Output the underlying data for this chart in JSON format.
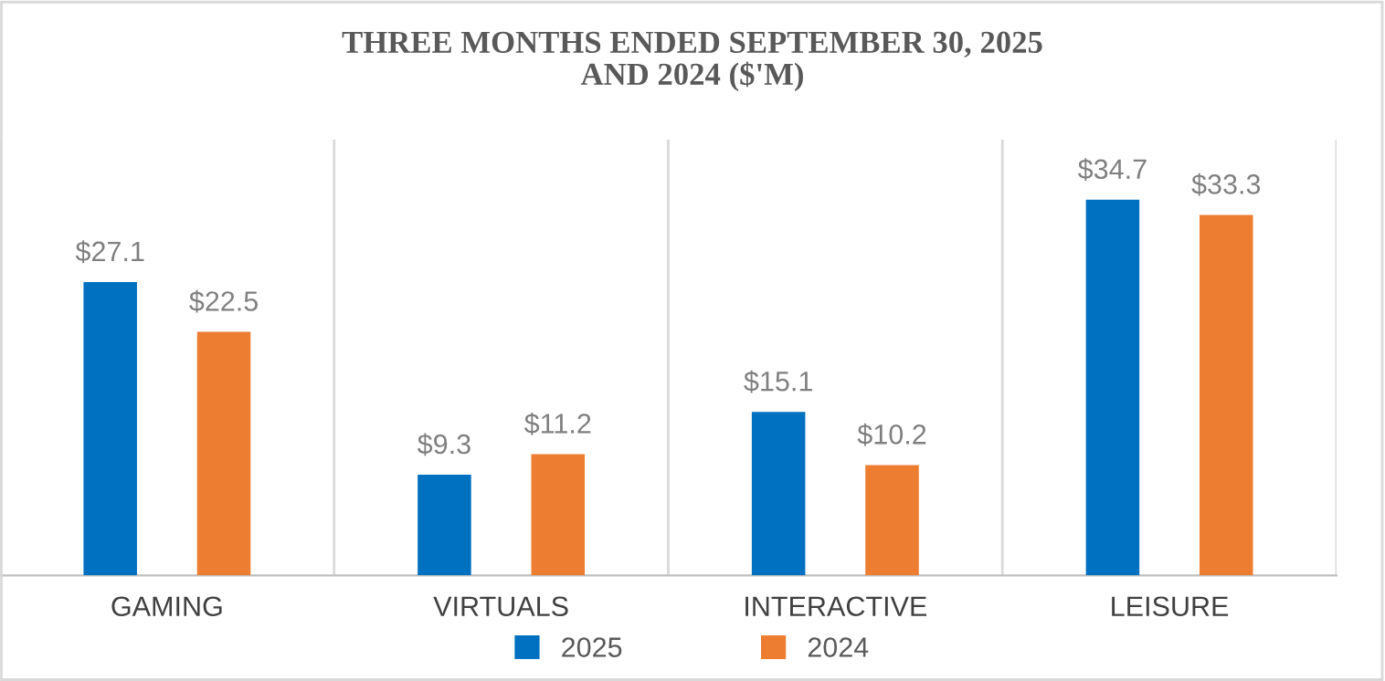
{
  "chart_data": {
    "type": "bar",
    "title": "THREE MONTHS ENDED SEPTEMBER 30, 2025\nAND 2024 ($'M)",
    "categories": [
      "GAMING",
      "VIRTUALS",
      "INTERACTIVE",
      "LEISURE"
    ],
    "series": [
      {
        "name": "2025",
        "color": "#0070c0",
        "values": [
          27.1,
          9.3,
          15.1,
          34.7
        ],
        "value_labels": [
          "$27.1",
          "$9.3",
          "$15.1",
          "$34.7"
        ]
      },
      {
        "name": "2024",
        "color": "#ed7d31",
        "values": [
          22.5,
          11.2,
          10.2,
          33.3
        ],
        "value_labels": [
          "$22.5",
          "$11.2",
          "$10.2",
          "$33.3"
        ]
      }
    ],
    "grid": "x",
    "legend": "bottom",
    "tick_labels": "x"
  }
}
